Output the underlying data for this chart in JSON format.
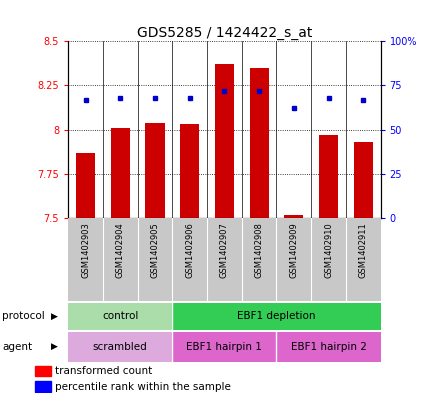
{
  "title": "GDS5285 / 1424422_s_at",
  "samples": [
    "GSM1402903",
    "GSM1402904",
    "GSM1402905",
    "GSM1402906",
    "GSM1402907",
    "GSM1402908",
    "GSM1402909",
    "GSM1402910",
    "GSM1402911"
  ],
  "transformed_counts": [
    7.87,
    8.01,
    8.04,
    8.03,
    8.37,
    8.35,
    7.52,
    7.97,
    7.93
  ],
  "percentile_ranks": [
    67,
    68,
    68,
    68,
    72,
    72,
    62,
    68,
    67
  ],
  "ymin": 7.5,
  "ymax": 8.5,
  "yticks": [
    7.5,
    7.75,
    8.0,
    8.25,
    8.5
  ],
  "ytick_labels": [
    "7.5",
    "7.75",
    "8",
    "8.25",
    "8.5"
  ],
  "y2min": 0,
  "y2max": 100,
  "y2ticks": [
    0,
    25,
    50,
    75,
    100
  ],
  "y2tick_labels": [
    "0",
    "25",
    "50",
    "75",
    "100%"
  ],
  "bar_color": "#cc0000",
  "dot_color": "#0000cc",
  "bar_width": 0.55,
  "protocol_colors": [
    "#aaddaa",
    "#33cc55"
  ],
  "protocol_texts": [
    "control",
    "EBF1 depletion"
  ],
  "protocol_starts": [
    0,
    3
  ],
  "protocol_ends": [
    3,
    9
  ],
  "agent_colors": [
    "#ddaadd",
    "#dd66cc",
    "#dd66cc"
  ],
  "agent_texts": [
    "scrambled",
    "EBF1 hairpin 1",
    "EBF1 hairpin 2"
  ],
  "agent_starts": [
    0,
    3,
    6
  ],
  "agent_ends": [
    3,
    6,
    9
  ],
  "legend_red_label": "transformed count",
  "legend_blue_label": "percentile rank within the sample",
  "sample_box_color": "#c8c8c8",
  "title_fontsize": 10,
  "tick_fontsize": 7,
  "label_fontsize": 7.5,
  "row_fontsize": 7.5
}
